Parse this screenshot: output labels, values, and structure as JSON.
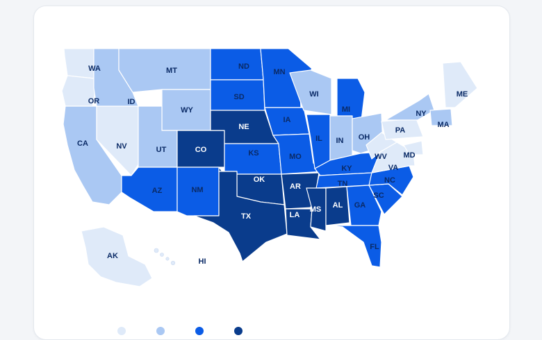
{
  "colors": {
    "tier1": "#dfeaf9",
    "tier2": "#aac8f3",
    "tier3": "#0b5ce6",
    "tier4": "#0a3c8c",
    "label_dark": "#0a2a66",
    "label_light": "#ffffff",
    "border": "#ffffff",
    "background": "#f3f5f8",
    "card": "#ffffff"
  },
  "states": [
    {
      "abbr": "WA",
      "tier": 1
    },
    {
      "abbr": "OR",
      "tier": 1
    },
    {
      "abbr": "CA",
      "tier": 2
    },
    {
      "abbr": "NV",
      "tier": 1
    },
    {
      "abbr": "ID",
      "tier": 2
    },
    {
      "abbr": "MT",
      "tier": 2
    },
    {
      "abbr": "WY",
      "tier": 2
    },
    {
      "abbr": "UT",
      "tier": 2
    },
    {
      "abbr": "CO",
      "tier": 4
    },
    {
      "abbr": "AZ",
      "tier": 3
    },
    {
      "abbr": "NM",
      "tier": 3
    },
    {
      "abbr": "ND",
      "tier": 3
    },
    {
      "abbr": "SD",
      "tier": 3
    },
    {
      "abbr": "NE",
      "tier": 4
    },
    {
      "abbr": "KS",
      "tier": 3
    },
    {
      "abbr": "OK",
      "tier": 4
    },
    {
      "abbr": "TX",
      "tier": 4
    },
    {
      "abbr": "MN",
      "tier": 3
    },
    {
      "abbr": "IA",
      "tier": 3
    },
    {
      "abbr": "MO",
      "tier": 3
    },
    {
      "abbr": "AR",
      "tier": 4
    },
    {
      "abbr": "LA",
      "tier": 4
    },
    {
      "abbr": "WI",
      "tier": 2
    },
    {
      "abbr": "IL",
      "tier": 3
    },
    {
      "abbr": "MI",
      "tier": 3
    },
    {
      "abbr": "IN",
      "tier": 2
    },
    {
      "abbr": "OH",
      "tier": 2
    },
    {
      "abbr": "KY",
      "tier": 3
    },
    {
      "abbr": "TN",
      "tier": 3
    },
    {
      "abbr": "MS",
      "tier": 4
    },
    {
      "abbr": "AL",
      "tier": 4
    },
    {
      "abbr": "GA",
      "tier": 3
    },
    {
      "abbr": "FL",
      "tier": 3
    },
    {
      "abbr": "SC",
      "tier": 3
    },
    {
      "abbr": "NC",
      "tier": 3
    },
    {
      "abbr": "VA",
      "tier": 1
    },
    {
      "abbr": "WV",
      "tier": 1
    },
    {
      "abbr": "PA",
      "tier": 1
    },
    {
      "abbr": "NY",
      "tier": 2
    },
    {
      "abbr": "MD",
      "tier": 1
    },
    {
      "abbr": "MA",
      "tier": 2
    },
    {
      "abbr": "ME",
      "tier": 1
    },
    {
      "abbr": "AK",
      "tier": 1
    },
    {
      "abbr": "HI",
      "tier": 1
    }
  ],
  "legend": [
    {
      "tier": 1,
      "label": ""
    },
    {
      "tier": 2,
      "label": ""
    },
    {
      "tier": 3,
      "label": ""
    },
    {
      "tier": 4,
      "label": ""
    }
  ]
}
